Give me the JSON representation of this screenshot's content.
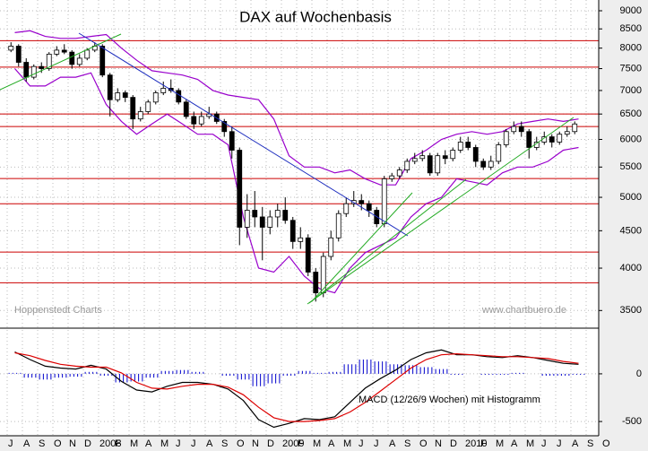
{
  "chart_data": [
    {
      "type": "candlestick",
      "title": "DAX auf Wochenbasis",
      "annotations": [
        "Hoppenstedt Charts",
        "www.chartbuero.de"
      ],
      "categories": [
        "J",
        "A",
        "S",
        "O",
        "N",
        "D",
        "2008",
        "F",
        "M",
        "A",
        "M",
        "J",
        "J",
        "A",
        "S",
        "O",
        "N",
        "D",
        "2009",
        "F",
        "M",
        "A",
        "M",
        "J",
        "J",
        "A",
        "S",
        "O",
        "N",
        "D",
        "2010",
        "F",
        "M",
        "A",
        "M",
        "J",
        "J",
        "A",
        "S",
        "O"
      ],
      "log_scale": true,
      "grid": true,
      "ylim": [
        3320,
        9310
      ],
      "yticks": [
        3500,
        4000,
        4500,
        5000,
        5500,
        6000,
        6500,
        7000,
        7500,
        8000,
        8500,
        9000
      ],
      "up_color": "#ffffff",
      "down_color": "#000000",
      "candles": [
        [
          7950,
          8150,
          7900,
          8050
        ],
        [
          8050,
          8100,
          7550,
          7650
        ],
        [
          7650,
          7750,
          7200,
          7300
        ],
        [
          7300,
          7600,
          7250,
          7550
        ],
        [
          7550,
          7650,
          7400,
          7500
        ],
        [
          7500,
          7900,
          7450,
          7850
        ],
        [
          7850,
          8050,
          7800,
          7950
        ],
        [
          7950,
          8100,
          7850,
          7900
        ],
        [
          7900,
          7950,
          7500,
          7600
        ],
        [
          7600,
          7850,
          7550,
          7750
        ],
        [
          7750,
          8000,
          7700,
          7950
        ],
        [
          7950,
          8150,
          7900,
          8050
        ],
        [
          8050,
          8100,
          7300,
          7350
        ],
        [
          7350,
          7400,
          6450,
          6800
        ],
        [
          6800,
          7050,
          6750,
          6950
        ],
        [
          6950,
          7000,
          6750,
          6850
        ],
        [
          6850,
          6900,
          6200,
          6400
        ],
        [
          6400,
          6650,
          6350,
          6550
        ],
        [
          6550,
          6800,
          6500,
          6750
        ],
        [
          6750,
          7000,
          6700,
          6950
        ],
        [
          6950,
          7200,
          6900,
          7050
        ],
        [
          7050,
          7250,
          6950,
          7000
        ],
        [
          7000,
          7050,
          6700,
          6750
        ],
        [
          6750,
          6800,
          6400,
          6450
        ],
        [
          6450,
          6550,
          6200,
          6300
        ],
        [
          6300,
          6550,
          6250,
          6450
        ],
        [
          6450,
          6650,
          6400,
          6500
        ],
        [
          6500,
          6550,
          6300,
          6350
        ],
        [
          6350,
          6400,
          6050,
          6150
        ],
        [
          6150,
          6250,
          5650,
          5800
        ],
        [
          5800,
          5850,
          4300,
          4550
        ],
        [
          4550,
          5050,
          4400,
          4800
        ],
        [
          4800,
          5100,
          4550,
          4700
        ],
        [
          4700,
          4850,
          4100,
          4550
        ],
        [
          4550,
          4800,
          4450,
          4700
        ],
        [
          4700,
          4900,
          4550,
          4800
        ],
        [
          4800,
          5000,
          4600,
          4650
        ],
        [
          4650,
          4700,
          4250,
          4350
        ],
        [
          4350,
          4550,
          4250,
          4400
        ],
        [
          4400,
          4450,
          3900,
          3950
        ],
        [
          3950,
          4000,
          3600,
          3700
        ],
        [
          3700,
          4200,
          3650,
          4150
        ],
        [
          4150,
          4500,
          4100,
          4400
        ],
        [
          4400,
          4800,
          4350,
          4750
        ],
        [
          4750,
          5000,
          4700,
          4900
        ],
        [
          4900,
          5100,
          4850,
          4950
        ],
        [
          4950,
          5050,
          4800,
          4900
        ],
        [
          4900,
          4950,
          4700,
          4800
        ],
        [
          4800,
          4850,
          4550,
          4600
        ],
        [
          4600,
          5350,
          4550,
          5300
        ],
        [
          5300,
          5400,
          5250,
          5350
        ],
        [
          5350,
          5500,
          5300,
          5450
        ],
        [
          5450,
          5650,
          5400,
          5600
        ],
        [
          5600,
          5750,
          5550,
          5650
        ],
        [
          5650,
          5800,
          5600,
          5700
        ],
        [
          5700,
          5750,
          5350,
          5400
        ],
        [
          5400,
          5750,
          5350,
          5700
        ],
        [
          5700,
          5800,
          5550,
          5650
        ],
        [
          5650,
          5850,
          5600,
          5800
        ],
        [
          5800,
          6050,
          5750,
          5950
        ],
        [
          5950,
          6050,
          5800,
          5850
        ],
        [
          5850,
          5900,
          5500,
          5600
        ],
        [
          5600,
          5650,
          5450,
          5500
        ],
        [
          5500,
          5700,
          5450,
          5600
        ],
        [
          5600,
          5950,
          5550,
          5900
        ],
        [
          5900,
          6200,
          5850,
          6150
        ],
        [
          6150,
          6350,
          6100,
          6250
        ],
        [
          6250,
          6350,
          6050,
          6150
        ],
        [
          6150,
          6200,
          5650,
          5850
        ],
        [
          5850,
          6050,
          5800,
          5950
        ],
        [
          5950,
          6150,
          5900,
          6050
        ],
        [
          6050,
          6100,
          5850,
          5950
        ],
        [
          5950,
          6150,
          5900,
          6100
        ],
        [
          6100,
          6250,
          6050,
          6150
        ],
        [
          6150,
          6350,
          6100,
          6300
        ]
      ],
      "bands": [
        {
          "color": "#9900cc",
          "values": [
            8400,
            8450,
            8300,
            8250,
            8250,
            8300,
            8350,
            8000,
            7700,
            7450,
            7400,
            7350,
            7250,
            7000,
            6900,
            6850,
            6800,
            6400,
            5700,
            5500,
            5500,
            5400,
            5450,
            5300,
            5200,
            5200,
            5650,
            5800,
            6000,
            6100,
            6150,
            6100,
            6150,
            6300,
            6350,
            6400,
            6350,
            6400
          ]
        },
        {
          "color": "#9900cc",
          "values": [
            7500,
            7100,
            7100,
            7300,
            7300,
            7400,
            6700,
            6350,
            6100,
            6300,
            6500,
            6300,
            6100,
            6100,
            5900,
            4700,
            4000,
            3950,
            4150,
            3900,
            3750,
            3700,
            4000,
            4200,
            4300,
            4400,
            4700,
            4900,
            5000,
            5300,
            5250,
            5200,
            5400,
            5500,
            5500,
            5600,
            5800,
            5850
          ]
        }
      ],
      "hlines": {
        "color": "#cc0000",
        "values": [
          8190,
          7535,
          6500,
          6250,
          5305,
          4900,
          4207,
          3820
        ]
      }
    },
    {
      "type": "line",
      "annotations": [
        "MACD (12/26/9 Wochen) mit Histogramm"
      ],
      "ylim": [
        -640,
        460
      ],
      "yticks": [
        -500,
        0
      ],
      "grid": true,
      "histogram": {
        "color": "#0000cc",
        "values": [
          10,
          -40,
          -60,
          -40,
          -30,
          20,
          -20,
          -90,
          -80,
          -40,
          30,
          40,
          20,
          0,
          -20,
          -60,
          -130,
          -100,
          -20,
          30,
          10,
          20,
          100,
          150,
          130,
          100,
          90,
          70,
          50,
          -10,
          0,
          -10,
          -10,
          10,
          0,
          -20,
          -20,
          -10
        ]
      },
      "series": [
        {
          "color": "#000000",
          "values": [
            230,
            150,
            80,
            60,
            50,
            90,
            50,
            -80,
            -170,
            -190,
            -130,
            -90,
            -90,
            -110,
            -160,
            -280,
            -480,
            -560,
            -520,
            -470,
            -480,
            -450,
            -300,
            -150,
            -50,
            40,
            150,
            220,
            250,
            200,
            200,
            180,
            170,
            190,
            170,
            140,
            110,
            100
          ]
        },
        {
          "color": "#dd0000",
          "values": [
            220,
            190,
            140,
            100,
            80,
            70,
            70,
            10,
            -90,
            -150,
            -160,
            -130,
            -110,
            -110,
            -140,
            -220,
            -350,
            -460,
            -500,
            -500,
            -490,
            -470,
            -400,
            -300,
            -180,
            -60,
            60,
            150,
            200,
            210,
            200,
            190,
            180,
            180,
            170,
            160,
            130,
            110
          ]
        }
      ]
    }
  ]
}
